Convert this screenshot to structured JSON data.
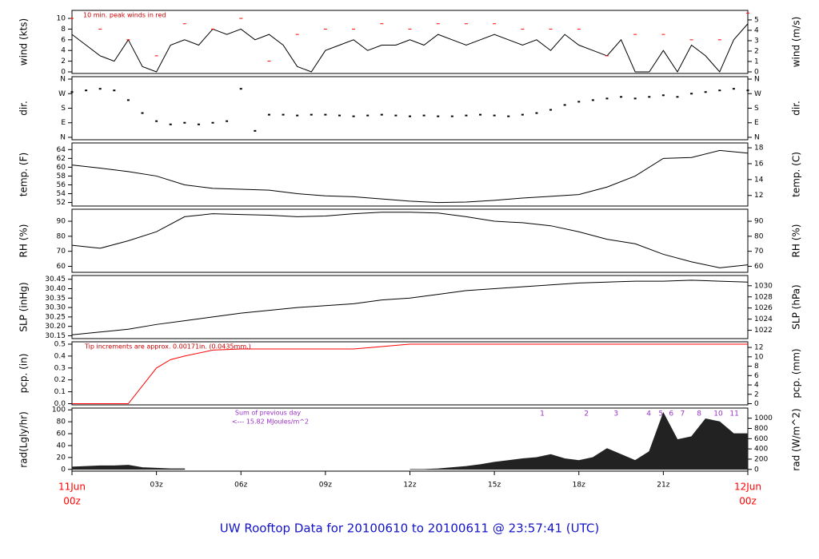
{
  "title": "UW Rooftop Data for 20100610  to  20100611 @ 23:57:41  (UTC)",
  "x_axis": {
    "xlim": [
      0,
      24
    ],
    "start_date": "11Jun",
    "end_date": "12Jun",
    "xticks": [
      {
        "value": 0,
        "label": "00z"
      },
      {
        "value": 3,
        "label": "03z"
      },
      {
        "value": 6,
        "label": "06z"
      },
      {
        "value": 9,
        "label": "09z"
      },
      {
        "value": 12,
        "label": "12z"
      },
      {
        "value": 15,
        "label": "15z"
      },
      {
        "value": 18,
        "label": "18z"
      },
      {
        "value": 21,
        "label": "21z"
      },
      {
        "value": 24,
        "label": "00z"
      }
    ]
  },
  "chart_data": [
    {
      "type": "line",
      "ylabel": "wind (kts)",
      "y2label": "wind (m/s)",
      "annotation": "10 min. peak winds in red",
      "ylim": [
        -0.3,
        11.5
      ],
      "yticks": [
        0,
        2,
        4,
        6,
        8,
        10
      ],
      "y2lim": [
        -0.154,
        5.916
      ],
      "y2ticks": [
        0,
        1,
        2,
        3,
        4,
        5
      ],
      "series": [
        {
          "mark": "line",
          "color": "#000000",
          "x": [
            0,
            0.5,
            1,
            1.5,
            2,
            2.5,
            3,
            3.5,
            4,
            4.5,
            5,
            5.5,
            6,
            6.5,
            7,
            7.5,
            8,
            8.5,
            9,
            9.5,
            10,
            10.5,
            11,
            11.5,
            12,
            12.5,
            13,
            13.5,
            14,
            14.5,
            15,
            15.5,
            16,
            16.5,
            17,
            17.5,
            18,
            18.5,
            19,
            19.5,
            20,
            20.5,
            21,
            21.5,
            22,
            22.5,
            23,
            23.5,
            24
          ],
          "values": [
            7,
            5,
            3,
            2,
            6,
            1,
            0,
            5,
            6,
            5,
            8,
            7,
            8,
            6,
            7,
            5,
            1,
            0,
            4,
            5,
            6,
            4,
            5,
            5,
            6,
            5,
            7,
            6,
            5,
            6,
            7,
            6,
            5,
            6,
            4,
            7,
            5,
            4,
            3,
            6,
            0,
            0,
            4,
            0,
            5,
            3,
            0,
            6,
            9
          ]
        },
        {
          "mark": "dash",
          "color": "#ff0000",
          "x": [
            0,
            1,
            2,
            3,
            4,
            5,
            6,
            7,
            8,
            9,
            10,
            11,
            12,
            13,
            14,
            15,
            16,
            17,
            18,
            19,
            20,
            21,
            22,
            23,
            24
          ],
          "values": [
            10,
            8,
            6,
            3,
            9,
            8,
            10,
            2,
            7,
            8,
            8,
            9,
            8,
            9,
            9,
            9,
            8,
            8,
            8,
            3,
            7,
            7,
            6,
            6,
            11
          ]
        }
      ]
    },
    {
      "type": "scatter",
      "ylabel": "dir.",
      "y2label": "dir.",
      "ylim": [
        -15,
        375
      ],
      "yticks": [
        {
          "value": 0,
          "label": "N"
        },
        {
          "value": 90,
          "label": "E"
        },
        {
          "value": 180,
          "label": "S"
        },
        {
          "value": 270,
          "label": "W"
        },
        {
          "value": 360,
          "label": "N"
        }
      ],
      "y2lim": [
        -15,
        375
      ],
      "y2ticks": [
        {
          "value": 0,
          "label": "N"
        },
        {
          "value": 90,
          "label": "E"
        },
        {
          "value": 180,
          "label": "S"
        },
        {
          "value": 270,
          "label": "W"
        },
        {
          "value": 360,
          "label": "N"
        }
      ],
      "series": [
        {
          "mark": "scatter",
          "color": "#000000",
          "x": [
            0,
            0.5,
            1,
            1.5,
            2,
            2.5,
            3,
            3.5,
            4,
            4.5,
            5,
            5.5,
            6,
            6.5,
            7,
            7.5,
            8,
            8.5,
            9,
            9.5,
            10,
            10.5,
            11,
            11.5,
            12,
            12.5,
            13,
            13.5,
            14,
            14.5,
            15,
            15.5,
            16,
            16.5,
            17,
            17.5,
            18,
            18.5,
            19,
            19.5,
            20,
            20.5,
            21,
            21.5,
            22,
            22.5,
            23,
            23.5,
            24
          ],
          "values": [
            280,
            290,
            300,
            290,
            230,
            150,
            100,
            80,
            90,
            80,
            90,
            100,
            300,
            40,
            140,
            140,
            135,
            140,
            140,
            135,
            130,
            135,
            140,
            135,
            130,
            135,
            130,
            130,
            135,
            140,
            135,
            130,
            140,
            150,
            170,
            200,
            220,
            230,
            240,
            250,
            240,
            250,
            260,
            250,
            270,
            280,
            290,
            300,
            290
          ]
        }
      ]
    },
    {
      "type": "line",
      "ylabel": "temp. (F)",
      "y2label": "temp. (C)",
      "ylim": [
        51.2,
        65.5
      ],
      "yticks": [
        52,
        54,
        56,
        58,
        60,
        62,
        64
      ],
      "y2lim": [
        10.667,
        18.611
      ],
      "y2ticks": [
        12,
        14,
        16,
        18
      ],
      "series": [
        {
          "mark": "line",
          "color": "#000000",
          "x": [
            0,
            1,
            2,
            3,
            4,
            5,
            6,
            7,
            8,
            9,
            10,
            11,
            12,
            13,
            14,
            15,
            16,
            17,
            18,
            19,
            20,
            21,
            22,
            23,
            24
          ],
          "values": [
            60.5,
            59.8,
            59,
            58,
            56,
            55.2,
            55,
            54.8,
            54,
            53.5,
            53.3,
            52.8,
            52.3,
            52,
            52.1,
            52.5,
            53,
            53.4,
            53.8,
            55.5,
            58,
            62,
            62.2,
            63.8,
            63.2
          ]
        }
      ]
    },
    {
      "type": "line",
      "ylabel": "RH (%)",
      "y2label": "RH (%)",
      "ylim": [
        56,
        98
      ],
      "yticks": [
        60,
        70,
        80,
        90
      ],
      "y2lim": [
        56,
        98
      ],
      "y2ticks": [
        60,
        70,
        80,
        90
      ],
      "series": [
        {
          "mark": "line",
          "color": "#000000",
          "x": [
            0,
            1,
            2,
            3,
            4,
            5,
            6,
            7,
            8,
            9,
            10,
            11,
            12,
            13,
            14,
            15,
            16,
            17,
            18,
            19,
            20,
            21,
            22,
            23,
            24
          ],
          "values": [
            74,
            72,
            77,
            83,
            93,
            95,
            94.5,
            94,
            93,
            93.5,
            95,
            96,
            96,
            95.5,
            93,
            90,
            89,
            87,
            83,
            78,
            75,
            68,
            63,
            59,
            61
          ]
        }
      ]
    },
    {
      "type": "line",
      "ylabel": "SLP (inHg)",
      "y2label": "SLP (hPa)",
      "ylim": [
        30.135,
        30.47
      ],
      "yticks": [
        {
          "value": 30.15,
          "label": "30.15"
        },
        {
          "value": 30.2,
          "label": "30.20"
        },
        {
          "value": 30.25,
          "label": "30.25"
        },
        {
          "value": 30.3,
          "label": "30.30"
        },
        {
          "value": 30.35,
          "label": "30.35"
        },
        {
          "value": 30.4,
          "label": "30.40"
        },
        {
          "value": 30.45,
          "label": "30.45"
        }
      ],
      "y2lim": [
        1020.5,
        1031.84
      ],
      "y2ticks": [
        1022,
        1024,
        1026,
        1028,
        1030
      ],
      "series": [
        {
          "mark": "line",
          "color": "#000000",
          "x": [
            0,
            1,
            2,
            3,
            4,
            5,
            6,
            7,
            8,
            9,
            10,
            11,
            12,
            13,
            14,
            15,
            16,
            17,
            18,
            19,
            20,
            21,
            22,
            23,
            24
          ],
          "values": [
            30.155,
            30.17,
            30.185,
            30.21,
            30.23,
            30.25,
            30.27,
            30.285,
            30.3,
            30.31,
            30.32,
            30.34,
            30.35,
            30.37,
            30.39,
            30.4,
            30.41,
            30.42,
            30.43,
            30.435,
            30.44,
            30.44,
            30.445,
            30.44,
            30.435
          ]
        }
      ]
    },
    {
      "type": "line",
      "ylabel": "pcp. (in)",
      "y2label": "pcp. (mm)",
      "annotation": "Tip increments are approx. 0.00171in. (0.0435mm.)",
      "ylim": [
        -0.01,
        0.52
      ],
      "yticks": [
        {
          "value": 0,
          "label": "0.0"
        },
        0.1,
        0.2,
        0.3,
        0.4,
        0.5
      ],
      "y2lim": [
        -0.254,
        13.208
      ],
      "y2ticks": [
        0,
        2,
        4,
        6,
        8,
        10,
        12
      ],
      "series": [
        {
          "mark": "line",
          "color": "#ff0000",
          "x": [
            0,
            1,
            2,
            2.5,
            3,
            3.5,
            4,
            5,
            6,
            7,
            8,
            9,
            10,
            11,
            12,
            13,
            14,
            15,
            16,
            17,
            18,
            19,
            20,
            21,
            22,
            23,
            24
          ],
          "values": [
            0,
            0,
            0,
            0.15,
            0.3,
            0.37,
            0.4,
            0.45,
            0.46,
            0.46,
            0.46,
            0.46,
            0.46,
            0.48,
            0.5,
            0.5,
            0.5,
            0.5,
            0.5,
            0.5,
            0.5,
            0.5,
            0.5,
            0.5,
            0.5,
            0.5,
            0.5
          ]
        }
      ]
    },
    {
      "type": "area",
      "ylabel": "rad(Lgly/hr)",
      "y2label": "rad (W/m^2)",
      "annotation": "Sum of previous day",
      "annotation2": "<--- 15.82 MJoules/m^2",
      "marker_x": [
        16.7,
        18.27,
        19.32,
        20.48,
        20.91,
        21.28,
        21.68,
        22.27,
        22.95,
        23.52
      ],
      "marker_labels": [
        "1",
        "2",
        "3",
        "4",
        "5",
        "6",
        "7",
        "8",
        "10",
        "11"
      ],
      "ylim": [
        -3,
        103
      ],
      "yticks": [
        0,
        20,
        40,
        60,
        80,
        100
      ],
      "y2lim": [
        -34.9,
        1197.9
      ],
      "y2ticks": [
        0,
        200,
        400,
        600,
        800,
        1000
      ],
      "series": [
        {
          "mark": "area",
          "color": "#222222",
          "x": [
            0,
            0.5,
            1,
            1.5,
            2,
            2.5,
            3,
            3.5,
            4,
            4.5,
            5,
            5.5,
            6,
            6.5,
            7,
            7.5,
            8,
            8.5,
            9,
            9.5,
            10,
            10.5,
            11,
            11.5,
            12,
            12.5,
            13,
            13.5,
            14,
            14.5,
            15,
            15.5,
            16,
            16.5,
            17,
            17.5,
            18,
            18.5,
            19,
            19.5,
            20,
            20.5,
            21,
            21.5,
            22,
            22.5,
            23,
            23.5,
            24
          ],
          "values": [
            4,
            5,
            6,
            6,
            7,
            3,
            2,
            1,
            1,
            null,
            null,
            null,
            null,
            null,
            null,
            null,
            null,
            null,
            null,
            null,
            null,
            null,
            null,
            null,
            0,
            0,
            1,
            3,
            5,
            8,
            12,
            15,
            18,
            20,
            25,
            18,
            15,
            20,
            35,
            25,
            15,
            30,
            95,
            50,
            55,
            85,
            80,
            60,
            60
          ]
        }
      ]
    }
  ]
}
